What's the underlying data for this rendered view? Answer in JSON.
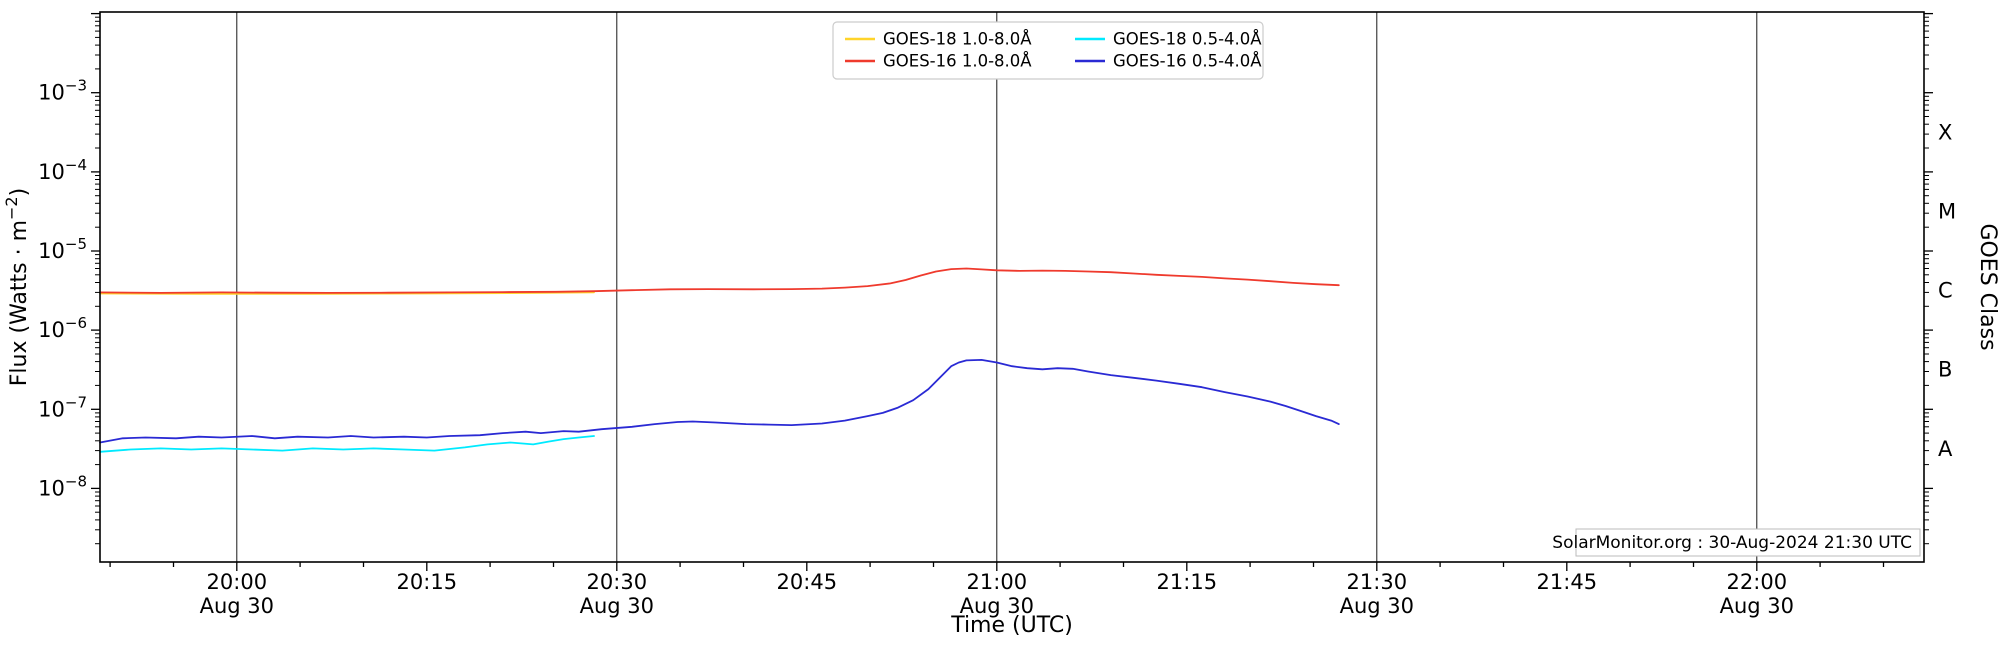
{
  "page": {
    "background": "#ffffff"
  },
  "chart_data": {
    "type": "line",
    "title": "",
    "xlabel": "Time (UTC)",
    "ylabel_parts": {
      "pre": "Flux (Watts · m",
      "sup": "−2",
      "post": ")"
    },
    "ylabel_right": "GOES Class",
    "annotation": "SolarMonitor.org : 30-Aug-2024 21:30 UTC",
    "x_range_hours": [
      19.82,
      22.22
    ],
    "ylog_range": [
      -8.93,
      -1.98
    ],
    "date_sub_label": "Aug 30",
    "x_major_ticks": [
      {
        "t": 20.0,
        "label": "20:00",
        "date": true
      },
      {
        "t": 20.25,
        "label": "20:15",
        "date": false
      },
      {
        "t": 20.5,
        "label": "20:30",
        "date": true
      },
      {
        "t": 20.75,
        "label": "20:45",
        "date": false
      },
      {
        "t": 21.0,
        "label": "21:00",
        "date": true
      },
      {
        "t": 21.25,
        "label": "21:15",
        "date": false
      },
      {
        "t": 21.5,
        "label": "21:30",
        "date": true
      },
      {
        "t": 21.75,
        "label": "21:45",
        "date": false
      },
      {
        "t": 22.0,
        "label": "22:00",
        "date": true
      }
    ],
    "grid_hours": [
      20.0,
      20.5,
      21.0,
      21.5,
      22.0
    ],
    "y_decade_labels": [
      -3,
      -4,
      -5,
      -6,
      -7,
      -8
    ],
    "goes_class_labels": [
      {
        "label": "X",
        "log": -3.5
      },
      {
        "label": "M",
        "log": -4.5
      },
      {
        "label": "C",
        "log": -5.5
      },
      {
        "label": "B",
        "log": -6.5
      },
      {
        "label": "A",
        "log": -7.5
      }
    ],
    "legend_columns": [
      [
        0,
        1
      ],
      [
        2,
        3
      ]
    ],
    "colors": {
      "frame": "#000000",
      "grid": "#000000",
      "legend_border": "#cccccc",
      "annotation_border": "#bbbbbb"
    },
    "series": [
      {
        "name": "GOES-18 1.0-8.0Å",
        "color": "#ffd42a",
        "points": [
          [
            19.82,
            2.9e-06
          ],
          [
            19.95,
            2.87e-06
          ],
          [
            20.1,
            2.88e-06
          ],
          [
            20.25,
            2.9e-06
          ],
          [
            20.4,
            2.95e-06
          ],
          [
            20.47,
            3e-06
          ]
        ]
      },
      {
        "name": "GOES-16 1.0-8.0Å",
        "color": "#ef3a2d",
        "points": [
          [
            19.82,
            3e-06
          ],
          [
            19.9,
            2.95e-06
          ],
          [
            19.98,
            3e-06
          ],
          [
            20.05,
            2.97e-06
          ],
          [
            20.12,
            2.95e-06
          ],
          [
            20.2,
            2.97e-06
          ],
          [
            20.28,
            3e-06
          ],
          [
            20.35,
            3.02e-06
          ],
          [
            20.42,
            3.05e-06
          ],
          [
            20.47,
            3.1e-06
          ],
          [
            20.52,
            3.2e-06
          ],
          [
            20.57,
            3.28e-06
          ],
          [
            20.62,
            3.3e-06
          ],
          [
            20.68,
            3.28e-06
          ],
          [
            20.73,
            3.3e-06
          ],
          [
            20.77,
            3.35e-06
          ],
          [
            20.8,
            3.45e-06
          ],
          [
            20.83,
            3.6e-06
          ],
          [
            20.86,
            3.9e-06
          ],
          [
            20.88,
            4.3e-06
          ],
          [
            20.9,
            4.9e-06
          ],
          [
            20.92,
            5.5e-06
          ],
          [
            20.94,
            5.9e-06
          ],
          [
            20.96,
            6e-06
          ],
          [
            20.98,
            5.85e-06
          ],
          [
            21.0,
            5.7e-06
          ],
          [
            21.03,
            5.6e-06
          ],
          [
            21.06,
            5.65e-06
          ],
          [
            21.09,
            5.6e-06
          ],
          [
            21.12,
            5.5e-06
          ],
          [
            21.15,
            5.4e-06
          ],
          [
            21.18,
            5.2e-06
          ],
          [
            21.21,
            5e-06
          ],
          [
            21.24,
            4.85e-06
          ],
          [
            21.27,
            4.7e-06
          ],
          [
            21.3,
            4.5e-06
          ],
          [
            21.33,
            4.35e-06
          ],
          [
            21.36,
            4.15e-06
          ],
          [
            21.39,
            3.95e-06
          ],
          [
            21.42,
            3.8e-06
          ],
          [
            21.45,
            3.7e-06
          ]
        ]
      },
      {
        "name": "GOES-18 0.5-4.0Å",
        "color": "#00eaff",
        "points": [
          [
            19.82,
            2.9e-08
          ],
          [
            19.86,
            3.1e-08
          ],
          [
            19.9,
            3.2e-08
          ],
          [
            19.94,
            3.1e-08
          ],
          [
            19.98,
            3.2e-08
          ],
          [
            20.02,
            3.1e-08
          ],
          [
            20.06,
            3e-08
          ],
          [
            20.1,
            3.2e-08
          ],
          [
            20.14,
            3.1e-08
          ],
          [
            20.18,
            3.2e-08
          ],
          [
            20.22,
            3.1e-08
          ],
          [
            20.26,
            3e-08
          ],
          [
            20.3,
            3.3e-08
          ],
          [
            20.33,
            3.6e-08
          ],
          [
            20.36,
            3.8e-08
          ],
          [
            20.39,
            3.6e-08
          ],
          [
            20.41,
            3.9e-08
          ],
          [
            20.43,
            4.2e-08
          ],
          [
            20.45,
            4.4e-08
          ],
          [
            20.47,
            4.6e-08
          ]
        ]
      },
      {
        "name": "GOES-16 0.5-4.0Å",
        "color": "#2a2ad4",
        "points": [
          [
            19.82,
            3.8e-08
          ],
          [
            19.85,
            4.3e-08
          ],
          [
            19.88,
            4.4e-08
          ],
          [
            19.92,
            4.3e-08
          ],
          [
            19.95,
            4.5e-08
          ],
          [
            19.98,
            4.4e-08
          ],
          [
            20.02,
            4.6e-08
          ],
          [
            20.05,
            4.3e-08
          ],
          [
            20.08,
            4.5e-08
          ],
          [
            20.12,
            4.4e-08
          ],
          [
            20.15,
            4.6e-08
          ],
          [
            20.18,
            4.4e-08
          ],
          [
            20.22,
            4.5e-08
          ],
          [
            20.25,
            4.4e-08
          ],
          [
            20.28,
            4.6e-08
          ],
          [
            20.32,
            4.7e-08
          ],
          [
            20.35,
            5e-08
          ],
          [
            20.38,
            5.2e-08
          ],
          [
            20.4,
            5e-08
          ],
          [
            20.43,
            5.3e-08
          ],
          [
            20.45,
            5.2e-08
          ],
          [
            20.48,
            5.6e-08
          ],
          [
            20.52,
            6e-08
          ],
          [
            20.55,
            6.5e-08
          ],
          [
            20.58,
            6.9e-08
          ],
          [
            20.6,
            7e-08
          ],
          [
            20.63,
            6.8e-08
          ],
          [
            20.67,
            6.5e-08
          ],
          [
            20.7,
            6.4e-08
          ],
          [
            20.73,
            6.3e-08
          ],
          [
            20.77,
            6.6e-08
          ],
          [
            20.8,
            7.2e-08
          ],
          [
            20.83,
            8.2e-08
          ],
          [
            20.85,
            9e-08
          ],
          [
            20.87,
            1.05e-07
          ],
          [
            20.89,
            1.3e-07
          ],
          [
            20.91,
            1.8e-07
          ],
          [
            20.93,
            2.8e-07
          ],
          [
            20.94,
            3.5e-07
          ],
          [
            20.95,
            3.9e-07
          ],
          [
            20.96,
            4.15e-07
          ],
          [
            20.98,
            4.2e-07
          ],
          [
            21.0,
            3.9e-07
          ],
          [
            21.02,
            3.5e-07
          ],
          [
            21.04,
            3.3e-07
          ],
          [
            21.06,
            3.2e-07
          ],
          [
            21.08,
            3.3e-07
          ],
          [
            21.1,
            3.25e-07
          ],
          [
            21.12,
            3e-07
          ],
          [
            21.15,
            2.7e-07
          ],
          [
            21.18,
            2.5e-07
          ],
          [
            21.21,
            2.3e-07
          ],
          [
            21.24,
            2.1e-07
          ],
          [
            21.27,
            1.9e-07
          ],
          [
            21.3,
            1.65e-07
          ],
          [
            21.33,
            1.45e-07
          ],
          [
            21.36,
            1.25e-07
          ],
          [
            21.38,
            1.1e-07
          ],
          [
            21.4,
            9.5e-08
          ],
          [
            21.42,
            8.2e-08
          ],
          [
            21.44,
            7.2e-08
          ],
          [
            21.45,
            6.5e-08
          ]
        ]
      }
    ]
  }
}
